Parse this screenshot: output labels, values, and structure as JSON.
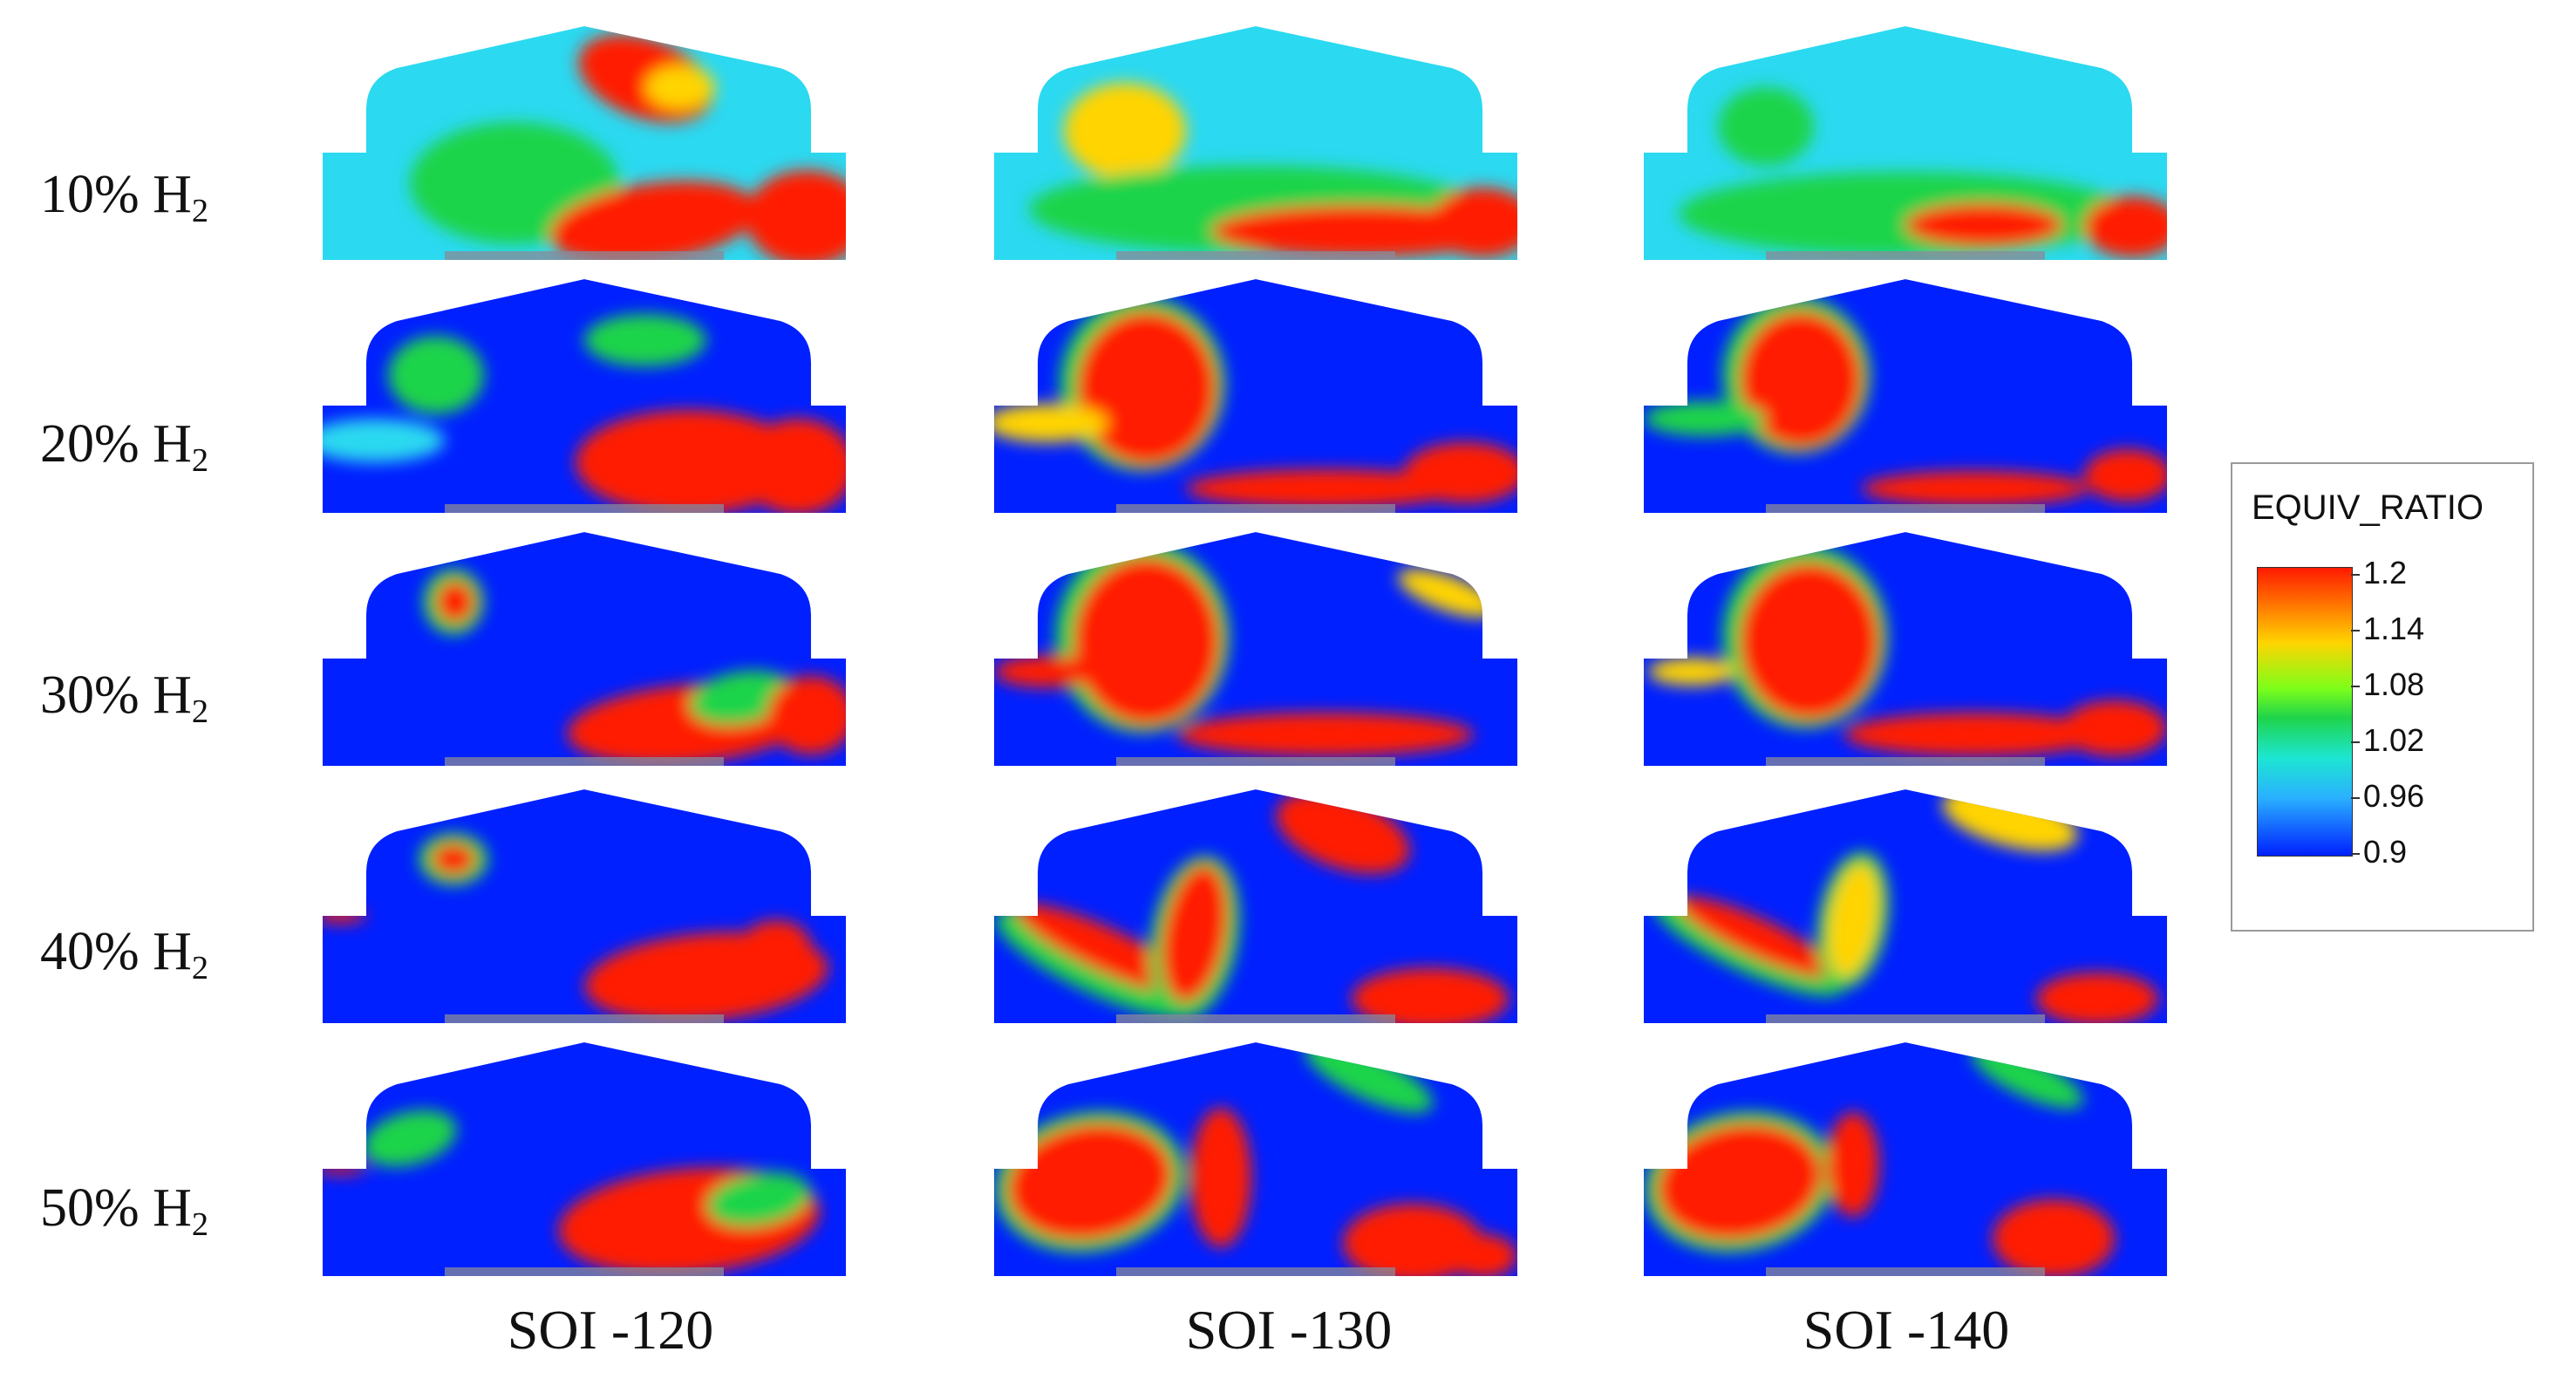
{
  "rows": [
    {
      "label": "10% H",
      "sub": "2"
    },
    {
      "label": "20% H",
      "sub": "2"
    },
    {
      "label": "30% H",
      "sub": "2"
    },
    {
      "label": "40% H",
      "sub": "2"
    },
    {
      "label": "50% H",
      "sub": "2"
    }
  ],
  "columns": [
    "SOI -120",
    "SOI -130",
    "SOI -140"
  ],
  "legend": {
    "title": "EQUIV_RATIO",
    "ticks": [
      "1.2",
      "1.14",
      "1.08",
      "1.02",
      "0.96",
      "0.9"
    ]
  },
  "colors": {
    "low": "#0020ff",
    "cyan": "#2bd9f0",
    "green": "#1fd44a",
    "yellow": "#ffd400",
    "high": "#ff1a00"
  }
}
